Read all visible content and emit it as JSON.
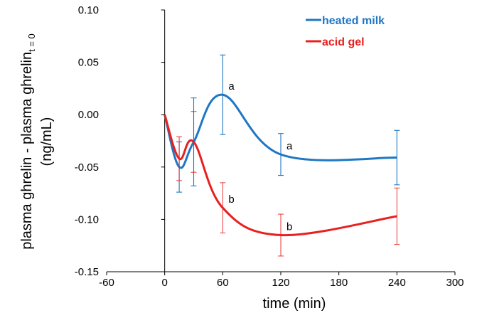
{
  "chart_data": {
    "type": "line",
    "title": "",
    "xlabel": "time (min)",
    "ylabel_line1_main": "plasma ghrelin - plasma ghrelin",
    "ylabel_line1_sub": "t = 0",
    "ylabel_line2": "(ng/mL)",
    "xlim": [
      -60,
      300
    ],
    "ylim": [
      -0.15,
      0.1
    ],
    "x_ticks": [
      -60,
      0,
      60,
      120,
      180,
      240,
      300
    ],
    "x_tick_labels": [
      "-60",
      "0",
      "60",
      "120",
      "180",
      "240",
      "300"
    ],
    "y_ticks": [
      -0.15,
      -0.1,
      -0.05,
      0.0,
      0.05,
      0.1
    ],
    "y_tick_labels": [
      "-0.15",
      "-0.10",
      "-0.05",
      "0.00",
      "0.05",
      "0.10"
    ],
    "grid": false,
    "legend_position": "top-right",
    "series": [
      {
        "name": "heated milk",
        "color": "#1f77c4",
        "x": [
          0,
          15,
          30,
          60,
          120,
          240
        ],
        "y": [
          0.0,
          -0.05,
          -0.026,
          0.019,
          -0.038,
          -0.041
        ],
        "error_low": [
          null,
          0.024,
          0.042,
          0.038,
          0.02,
          0.026
        ],
        "error_high": [
          null,
          0.024,
          0.042,
          0.038,
          0.02,
          0.026
        ],
        "annotations": [
          "",
          "",
          "",
          "a",
          "a",
          ""
        ]
      },
      {
        "name": "acid gel",
        "color": "#e8201f",
        "x": [
          0,
          15,
          30,
          60,
          120,
          240
        ],
        "y": [
          0.0,
          -0.042,
          -0.026,
          -0.089,
          -0.115,
          -0.097
        ],
        "error_low": [
          null,
          0.021,
          0.029,
          0.024,
          0.02,
          0.027
        ],
        "error_high": [
          null,
          0.021,
          0.029,
          0.024,
          0.02,
          0.027
        ],
        "annotations": [
          "",
          "",
          "",
          "b",
          "b",
          ""
        ]
      }
    ]
  }
}
